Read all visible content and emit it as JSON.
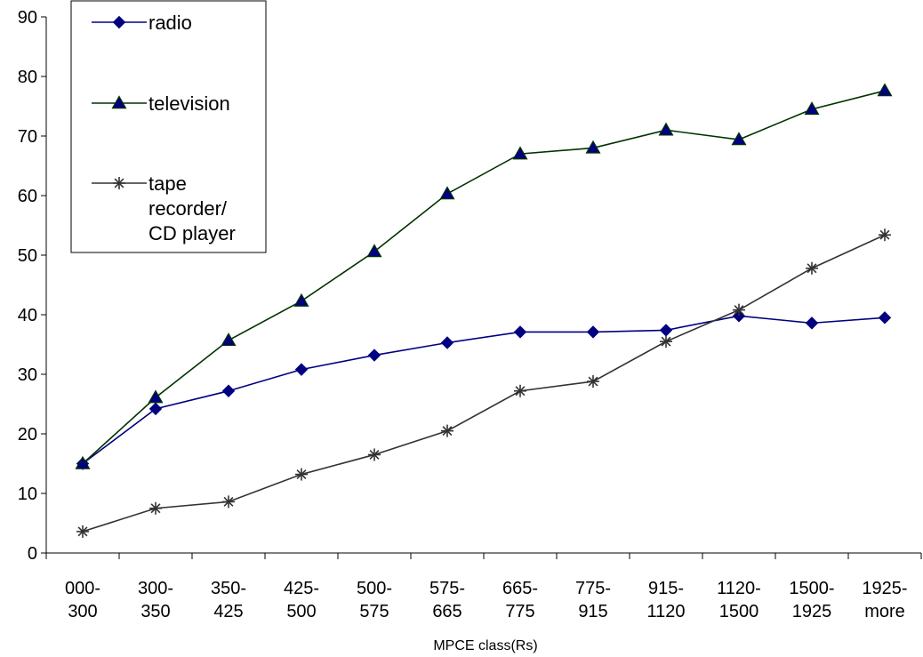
{
  "chart_data": {
    "type": "line",
    "categories": [
      [
        "000-",
        "300"
      ],
      [
        "300-",
        "350"
      ],
      [
        "350-",
        "425"
      ],
      [
        "425-",
        "500"
      ],
      [
        "500-",
        "575"
      ],
      [
        "575-",
        "665"
      ],
      [
        "665-",
        "775"
      ],
      [
        "775-",
        "915"
      ],
      [
        "915-",
        "1120"
      ],
      [
        "1120-",
        "1500"
      ],
      [
        "1500-",
        "1925"
      ],
      [
        "1925-",
        "more"
      ]
    ],
    "xlabel": "MPCE class(Rs)",
    "ylabel": "",
    "ylim": [
      0,
      90
    ],
    "yticks": [
      0,
      10,
      20,
      30,
      40,
      50,
      60,
      70,
      80,
      90
    ],
    "grid": false,
    "legend": "top-left",
    "series": [
      {
        "name": "radio",
        "label_lines": [
          "radio"
        ],
        "marker": "diamond",
        "color": "#000080",
        "values": [
          15.0,
          24.2,
          27.2,
          30.8,
          33.2,
          35.3,
          37.1,
          37.1,
          37.4,
          39.8,
          38.6,
          39.5
        ]
      },
      {
        "name": "television",
        "label_lines": [
          "television"
        ],
        "marker": "triangle",
        "color": "#003300",
        "marker_fill": "#000080",
        "values": [
          15.0,
          26.1,
          35.7,
          42.3,
          50.6,
          60.3,
          67.0,
          68.0,
          71.0,
          69.4,
          74.5,
          77.6
        ]
      },
      {
        "name": "tape recorder/ CD player",
        "label_lines": [
          "tape",
          "recorder/",
          "CD player"
        ],
        "marker": "star",
        "color": "#333333",
        "values": [
          3.6,
          7.5,
          8.6,
          13.2,
          16.5,
          20.5,
          27.2,
          28.8,
          35.5,
          40.8,
          47.8,
          53.4
        ]
      }
    ]
  }
}
